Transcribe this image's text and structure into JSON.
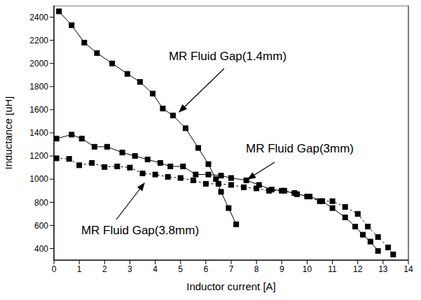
{
  "chart_data": {
    "type": "line",
    "x_label": "Inductor current [A]",
    "y_label": "Inductance [uH]",
    "xlim": [
      0,
      14
    ],
    "xticks": [
      0,
      1,
      2,
      3,
      4,
      5,
      6,
      7,
      8,
      9,
      10,
      11,
      12,
      13,
      14
    ],
    "ylim": [
      300,
      2500
    ],
    "yticks": [
      400,
      600,
      800,
      1000,
      1200,
      1400,
      1600,
      1800,
      2000,
      2200,
      2400
    ],
    "grid": false,
    "series": [
      {
        "name": "MR Fluid Gap(1.4mm)",
        "color": "#000000",
        "marker": "square",
        "line_style": "solid",
        "x": [
          0.2,
          0.7,
          1.2,
          1.7,
          2.3,
          2.9,
          3.4,
          3.9,
          4.3,
          4.7,
          5.2,
          5.7,
          6.1,
          6.4,
          6.6,
          6.9,
          7.2
        ],
        "values": [
          2450,
          2330,
          2180,
          2090,
          2000,
          1910,
          1840,
          1740,
          1610,
          1550,
          1440,
          1270,
          1130,
          1000,
          890,
          750,
          610
        ]
      },
      {
        "name": "MR Fluid Gap(3mm)",
        "color": "#000000",
        "marker": "square",
        "line_style": "solid",
        "x": [
          0.1,
          0.7,
          1.1,
          1.6,
          2.1,
          2.7,
          3.2,
          3.7,
          4.2,
          4.6,
          5.1,
          5.6,
          6.1,
          6.6,
          7.0,
          7.6,
          8.1,
          8.6,
          9.1,
          9.6,
          10.1,
          10.6,
          11.0,
          11.5,
          11.9,
          12.2,
          12.5,
          12.8
        ],
        "values": [
          1350,
          1385,
          1350,
          1280,
          1280,
          1230,
          1200,
          1170,
          1140,
          1110,
          1110,
          1040,
          1040,
          1030,
          1010,
          990,
          950,
          910,
          900,
          870,
          850,
          810,
          750,
          670,
          590,
          520,
          460,
          380
        ]
      },
      {
        "name": "MR Fluid Gap(3.8mm)",
        "color": "#000000",
        "marker": "square",
        "line_style": "dashed",
        "x": [
          0.1,
          0.6,
          1.0,
          1.5,
          2.0,
          2.5,
          3.0,
          3.5,
          4.0,
          4.5,
          5.0,
          5.5,
          6.0,
          6.5,
          7.0,
          7.5,
          8.0,
          8.5,
          9.0,
          9.5,
          10.0,
          10.5,
          11.0,
          11.5,
          12.0,
          12.4,
          12.8,
          13.2,
          13.4
        ],
        "values": [
          1180,
          1175,
          1120,
          1140,
          1105,
          1110,
          1100,
          1050,
          1040,
          1020,
          1010,
          990,
          960,
          960,
          950,
          930,
          920,
          900,
          900,
          880,
          850,
          810,
          810,
          760,
          700,
          590,
          500,
          410,
          350
        ]
      }
    ]
  }
}
